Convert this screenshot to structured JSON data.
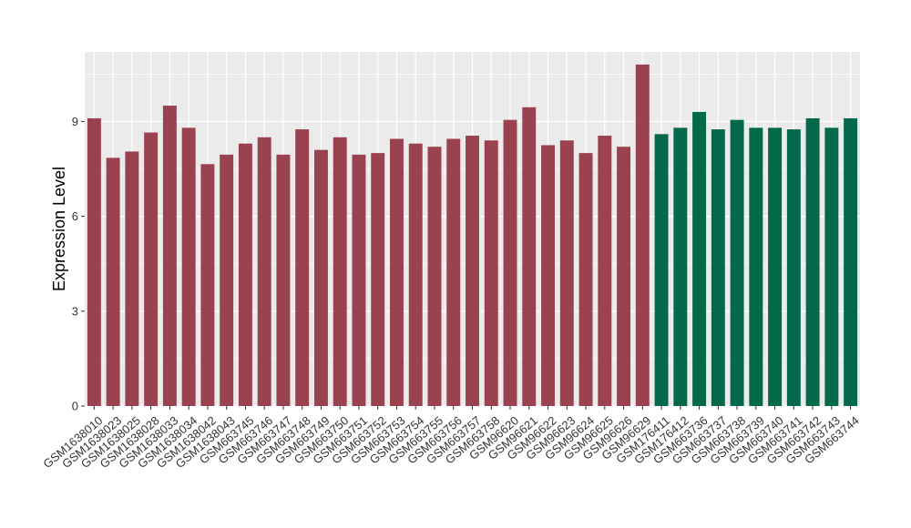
{
  "chart_data": {
    "type": "bar",
    "title": "",
    "xlabel": "",
    "ylabel": "Expression Level",
    "ylim": [
      0,
      11.2
    ],
    "yticks": [
      0,
      3,
      6,
      9
    ],
    "grid": true,
    "legend": "none",
    "colors": {
      "panel_bg": "#EBEBEB",
      "grid": "#FFFFFF",
      "group_1": "#9B4250",
      "group_2": "#04684A"
    },
    "categories": [
      "GSM1638010",
      "GSM1638023",
      "GSM1638025",
      "GSM1638028",
      "GSM1638033",
      "GSM1638034",
      "GSM1638042",
      "GSM1638043",
      "GSM663745",
      "GSM663746",
      "GSM663747",
      "GSM663748",
      "GSM663749",
      "GSM663750",
      "GSM663751",
      "GSM663752",
      "GSM663753",
      "GSM663754",
      "GSM663755",
      "GSM663756",
      "GSM663757",
      "GSM663758",
      "GSM96620",
      "GSM96621",
      "GSM96622",
      "GSM96623",
      "GSM96624",
      "GSM96625",
      "GSM96626",
      "GSM96629",
      "GSM176411",
      "GSM176412",
      "GSM663736",
      "GSM663737",
      "GSM663738",
      "GSM663739",
      "GSM663740",
      "GSM663741",
      "GSM663742",
      "GSM663743",
      "GSM663744"
    ],
    "values": [
      9.1,
      7.85,
      8.05,
      8.65,
      9.5,
      8.8,
      7.65,
      7.95,
      8.3,
      8.5,
      7.95,
      8.75,
      8.1,
      8.5,
      7.95,
      8.0,
      8.45,
      8.3,
      8.2,
      8.45,
      8.55,
      8.4,
      9.05,
      9.45,
      8.25,
      8.4,
      8.0,
      8.55,
      8.2,
      10.8,
      8.6,
      8.8,
      9.3,
      8.75,
      9.05,
      8.8,
      8.8,
      8.75,
      9.1,
      8.8,
      9.1
    ],
    "groups": [
      1,
      1,
      1,
      1,
      1,
      1,
      1,
      1,
      1,
      1,
      1,
      1,
      1,
      1,
      1,
      1,
      1,
      1,
      1,
      1,
      1,
      1,
      1,
      1,
      1,
      1,
      1,
      1,
      1,
      1,
      2,
      2,
      2,
      2,
      2,
      2,
      2,
      2,
      2,
      2,
      2
    ]
  }
}
